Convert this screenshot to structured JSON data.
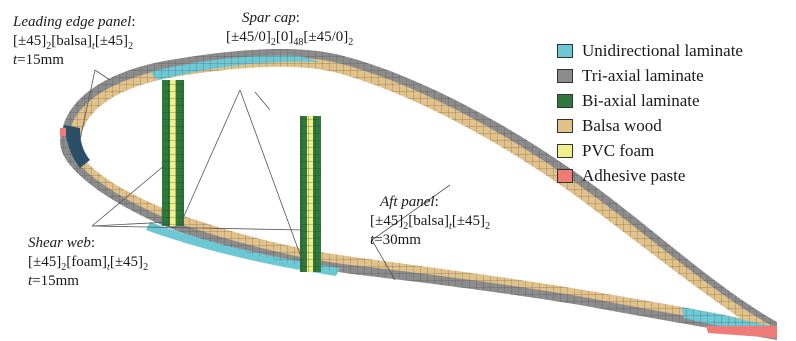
{
  "annotations": {
    "leading_edge": {
      "title": "Leading edge panel",
      "line2_pre": "[±45]",
      "line2_sub1": "2",
      "line2_mid": "[balsa]",
      "line2_sub2": "t",
      "line2_post": "[±45]",
      "line2_sub3": "2",
      "line3": "=15mm",
      "line3_var": "t"
    },
    "spar_cap": {
      "title": "Spar cap",
      "line2": "[±45/0]",
      "sub1": "2",
      "mid": "[0]",
      "sub2": "48",
      "post": "[±45/0]",
      "sub3": "2"
    },
    "shear_web": {
      "title": "Shear web",
      "line2_pre": "[±45]",
      "sub1": "2",
      "mid": "[foam]",
      "sub2": "t",
      "post": "[±45]",
      "sub3": "2",
      "line3_var": "t",
      "line3": "=15mm"
    },
    "aft_panel": {
      "title": "Aft panel",
      "line2_pre": "[±45]",
      "sub1": "2",
      "mid": "[balsa]",
      "sub2": "t",
      "post": "[±45]",
      "sub3": "2",
      "line3_var": "t",
      "line3": "=30mm"
    }
  },
  "legend": [
    {
      "label": "Unidirectional laminate",
      "color": "#6cc8d4"
    },
    {
      "label": "Tri-axial laminate",
      "color": "#8c8c8c"
    },
    {
      "label": "Bi-axial laminate",
      "color": "#2f7a3a"
    },
    {
      "label": "Balsa wood",
      "color": "#e3c28a"
    },
    {
      "label": "PVC foam",
      "color": "#f2ef8a"
    },
    {
      "label": "Adhesive paste",
      "color": "#ef7b78"
    }
  ]
}
